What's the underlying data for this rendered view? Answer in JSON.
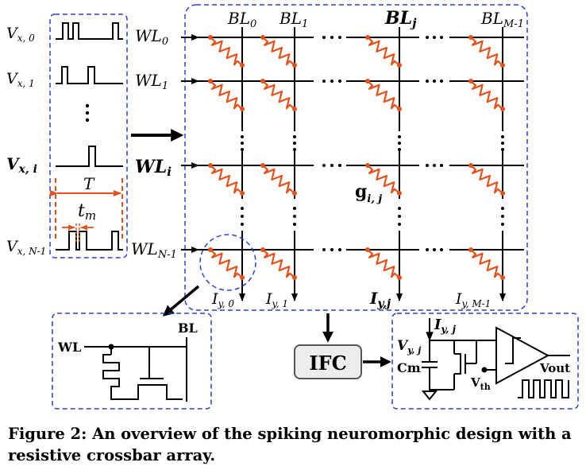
{
  "inputs": {
    "labels": [
      {
        "main": "V",
        "sub": "x, 0"
      },
      {
        "main": "V",
        "sub": "x, 1"
      },
      {
        "main": "V",
        "sub": "x, i"
      },
      {
        "main": "V",
        "sub": "x, N-1"
      }
    ],
    "period_label": "T",
    "width_label": "t",
    "width_sub": "m"
  },
  "wordlines": [
    {
      "main": "WL",
      "sub": "0"
    },
    {
      "main": "WL",
      "sub": "1"
    },
    {
      "main": "WL",
      "sub": "i"
    },
    {
      "main": "WL",
      "sub": "N-1"
    }
  ],
  "bitlines": [
    {
      "main": "BL",
      "sub": "0"
    },
    {
      "main": "BL",
      "sub": "1"
    },
    {
      "main": "BL",
      "sub": "j"
    },
    {
      "main": "BL",
      "sub": "M-1"
    }
  ],
  "currents": [
    {
      "main": "I",
      "sub": "y, 0"
    },
    {
      "main": "I",
      "sub": "y, 1"
    },
    {
      "main": "I",
      "sub": "y,j"
    },
    {
      "main": "I",
      "sub": "y, M-1"
    }
  ],
  "conductance": {
    "main": "g",
    "sub": "i, j"
  },
  "cell": {
    "wl_label": "WL",
    "bl_label": "BL"
  },
  "ifc_label": "IFC",
  "neuron": {
    "current": {
      "main": "I",
      "sub": "y, j"
    },
    "voltage": {
      "main": "V",
      "sub": "y, j"
    },
    "cap": "Cm",
    "threshold": {
      "main": "V",
      "sub": "th"
    },
    "output": "Vout"
  },
  "caption": "Figure 2: An overview of the spiking neuromorphic design with a resistive crossbar array.",
  "colors": {
    "memristor": "#e8501a",
    "dashed_box": "#2b3fd6",
    "wire": "#000000"
  }
}
